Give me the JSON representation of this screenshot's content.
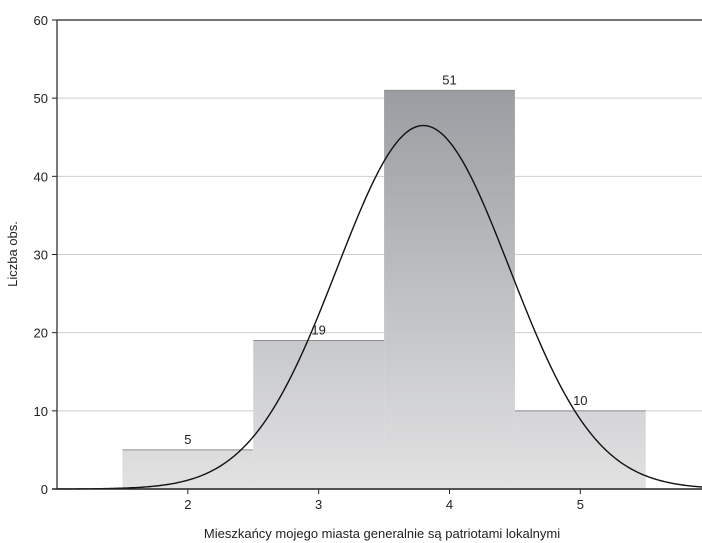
{
  "chart_data": {
    "type": "bar",
    "categories": [
      "2",
      "3",
      "4",
      "5"
    ],
    "values": [
      5,
      19,
      51,
      10
    ],
    "data_labels": [
      "5",
      "19",
      "51",
      "10"
    ],
    "xlabel": "Mieszkańcy mojego miasta generalnie są patriotami lokalnymi",
    "ylabel": "Liczba obs.",
    "xlim": [
      1.0,
      5.93
    ],
    "ylim": [
      0,
      60
    ],
    "yticks": [
      "0",
      "10",
      "20",
      "30",
      "40",
      "50",
      "60"
    ],
    "grid": "horizontal",
    "legend": "none",
    "overlay": {
      "type": "normal-curve",
      "mean": 3.8,
      "sd": 0.66,
      "peak": 46.5,
      "color": "#111111"
    },
    "colors": {
      "bar_top": "#9a9da1",
      "bar_bottom": "#e2e2e3",
      "grid": "#cfcfcf",
      "axis": "#222222"
    }
  }
}
